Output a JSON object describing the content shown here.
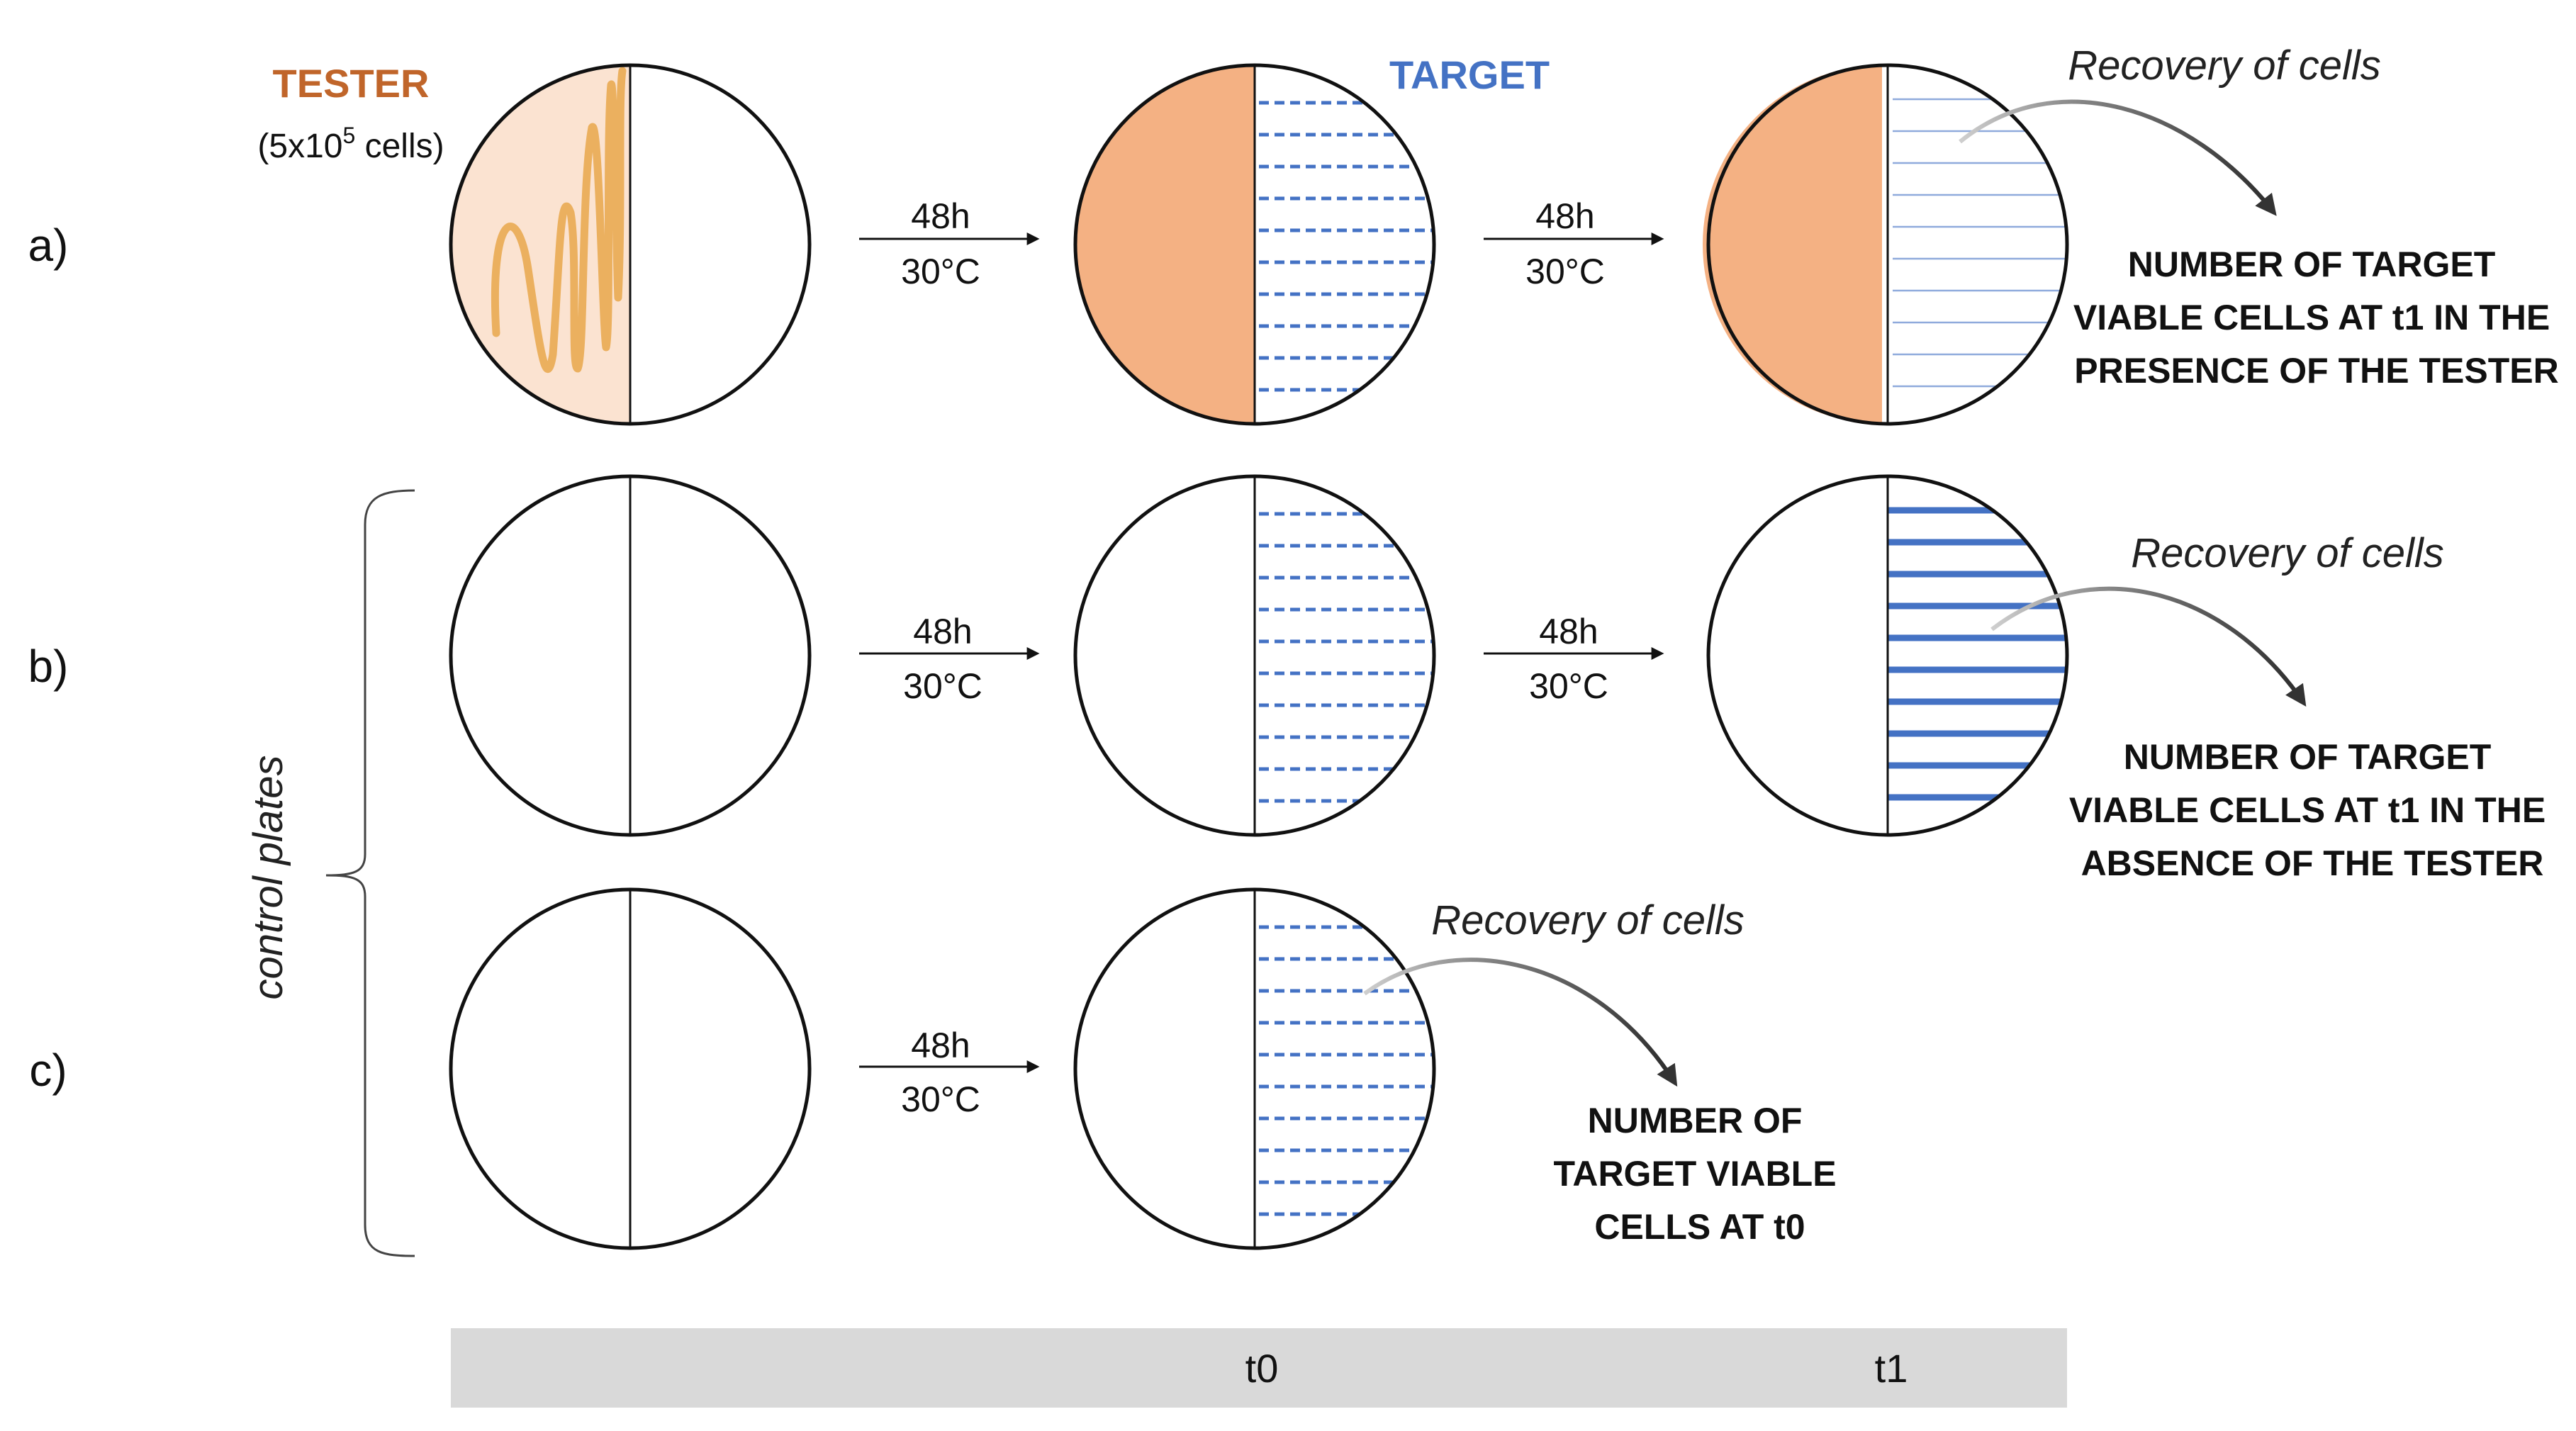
{
  "colors": {
    "tester": "#c0652a",
    "tester_fill": "#f4b183",
    "tester_streak": "#ebb05f",
    "tester_light": "#fbe3d1",
    "target": "#4472c4",
    "target_thin": "#8faadc",
    "timeline_bar": "#d9d9d9"
  },
  "headers": {
    "tester": "TESTER",
    "tester_cells_prefix": "(5x10",
    "tester_cells_exp": "5",
    "tester_cells_suffix": " cells)",
    "target": "TARGET"
  },
  "rows": [
    {
      "label": "a)"
    },
    {
      "label": "b)"
    },
    {
      "label": "c)"
    }
  ],
  "incubation": {
    "time": "48h",
    "temp": "30°C"
  },
  "recovery_label": "Recovery of cells",
  "results": {
    "a": [
      "NUMBER OF TARGET",
      "VIABLE CELLS AT t1 IN THE",
      "PRESENCE OF THE TESTER"
    ],
    "b": [
      "NUMBER OF TARGET",
      "VIABLE CELLS AT t1 IN THE",
      "ABSENCE OF THE TESTER"
    ],
    "c": [
      "NUMBER OF",
      "TARGET VIABLE",
      "CELLS AT t0"
    ]
  },
  "control_label": "control plates",
  "timeline": {
    "t0": "t0",
    "t1": "t1"
  }
}
